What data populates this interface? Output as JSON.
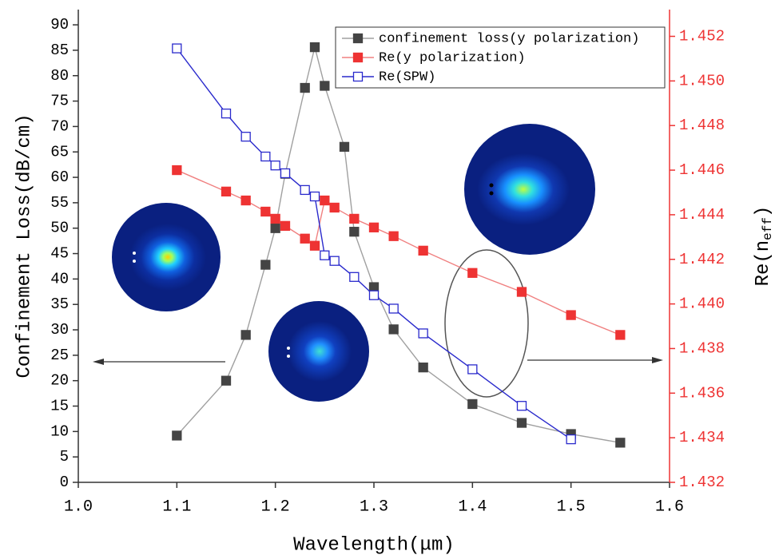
{
  "chart_data": {
    "type": "line",
    "x_label": "Wavelength(μm)",
    "y_label": "Confinement Loss(dB/cm)",
    "y2_label": [
      "Re(n",
      "eff",
      ")"
    ],
    "xlim": [
      1.0,
      1.6
    ],
    "xticks": [
      {
        "value": 1.0,
        "label": "1.0"
      },
      1.1,
      1.2,
      1.3,
      1.4,
      1.5,
      1.6
    ],
    "ylim": [
      0,
      93
    ],
    "yticks": [
      0,
      5,
      10,
      15,
      20,
      25,
      30,
      35,
      40,
      45,
      50,
      55,
      60,
      65,
      70,
      75,
      80,
      85,
      90
    ],
    "y2lim": [
      1.432,
      1.4532
    ],
    "y2ticks": [
      1.432,
      1.434,
      1.436,
      1.438,
      {
        "value": 1.44,
        "label": "1.440"
      },
      1.442,
      1.444,
      1.446,
      1.448,
      {
        "value": 1.45,
        "label": "1.450"
      },
      1.452
    ],
    "y2color": "#ee3333",
    "series": [
      {
        "name": "confinement loss(y polarization)",
        "color": "#444444",
        "line_color": "#a0a0a0",
        "marker": "filled",
        "x": [
          1.1,
          1.15,
          1.17,
          1.19,
          1.2,
          1.21,
          1.23,
          1.24,
          1.25,
          1.27,
          1.28,
          1.3,
          1.32,
          1.35,
          1.4,
          1.45,
          1.5,
          1.55
        ],
        "values": [
          9.2,
          20,
          29,
          42.8,
          50,
          60.7,
          77.6,
          85.6,
          78,
          66,
          49.3,
          38.4,
          30.1,
          22.6,
          15.4,
          11.7,
          9.5,
          7.8
        ]
      },
      {
        "name": "Re(y polarization)",
        "color": "#ee3333",
        "line_color": "#f08080",
        "marker": "filled",
        "axis": "y2",
        "x": [
          1.1,
          1.15,
          1.17,
          1.19,
          1.2,
          1.21,
          1.23,
          1.24,
          1.25,
          1.26,
          1.28,
          1.3,
          1.32,
          1.35,
          1.4,
          1.45,
          1.5,
          1.55
        ],
        "values": [
          1.446,
          1.44504,
          1.44464,
          1.44414,
          1.44382,
          1.4435,
          1.44293,
          1.44261,
          1.44464,
          1.44432,
          1.44382,
          1.44343,
          1.44304,
          1.44239,
          1.44139,
          1.44054,
          1.4395,
          1.43861
        ]
      },
      {
        "name": "Re(SPW)",
        "color": "#2a2acc",
        "line_color": "#2a2acc",
        "marker": "open",
        "axis": "y2",
        "x": [
          1.1,
          1.15,
          1.17,
          1.19,
          1.2,
          1.21,
          1.23,
          1.24,
          1.25,
          1.26,
          1.28,
          1.3,
          1.32,
          1.35,
          1.4,
          1.45,
          1.5
        ],
        "values": [
          1.45146,
          1.44854,
          1.4475,
          1.44661,
          1.44621,
          1.44586,
          1.44511,
          1.44482,
          1.44218,
          1.44193,
          1.44121,
          1.44039,
          1.43979,
          1.43868,
          1.43707,
          1.43543,
          1.43393
        ]
      }
    ]
  }
}
